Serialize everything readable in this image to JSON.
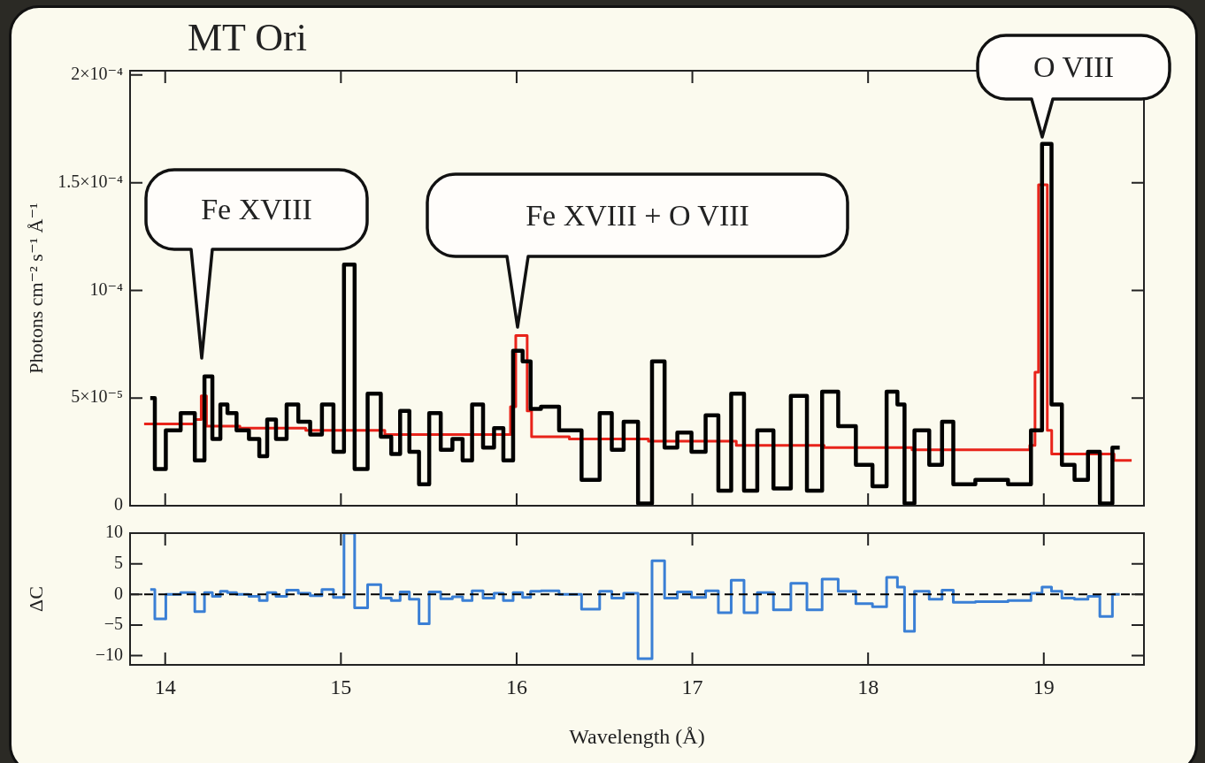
{
  "chart_data": [
    {
      "type": "step",
      "title": "MT Ori",
      "ylabel": "Photons cm⁻² s⁻¹ Å⁻¹",
      "xlim": [
        13.8,
        19.57
      ],
      "xticks": [
        14,
        15,
        16,
        17,
        18,
        19
      ],
      "ylim": [
        0,
        0.000202
      ],
      "yticks": [
        {
          "value": 0,
          "label": "0"
        },
        {
          "value": 5e-05,
          "label": "5×10⁻⁵"
        },
        {
          "value": 0.0001,
          "label": "10⁻⁴"
        },
        {
          "value": 0.00015,
          "label": "1.5×10⁻⁴"
        },
        {
          "value": 0.0002,
          "label": "2×10⁻⁴"
        }
      ],
      "tick_labels": "y",
      "grid": false,
      "annotations": [
        "Fe XVIII",
        "Fe XVIII + O VIII",
        "O VIII"
      ],
      "series": [
        {
          "color": "#000000",
          "x": [
            13.915,
            13.967,
            14.04,
            14.136,
            14.201,
            14.246,
            14.291,
            14.337,
            14.372,
            14.44,
            14.513,
            14.558,
            14.603,
            14.658,
            14.724,
            14.791,
            14.859,
            14.925,
            14.99,
            15.045,
            15.111,
            15.193,
            15.261,
            15.312,
            15.362,
            15.417,
            15.472,
            15.533,
            15.603,
            15.666,
            15.719,
            15.774,
            15.844,
            15.899,
            15.95,
            16.01,
            16.058,
            16.101,
            16.176,
            16.307,
            16.432,
            16.513,
            16.57,
            16.648,
            16.734,
            16.807,
            16.877,
            16.952,
            17.038,
            17.113,
            17.183,
            17.259,
            17.329,
            17.41,
            17.513,
            17.608,
            17.696,
            17.781,
            17.879,
            17.982,
            18.068,
            18.143,
            18.191,
            18.224,
            18.304,
            18.392,
            18.45,
            18.52,
            18.701,
            18.892,
            18.962,
            19.018,
            19.07,
            19.136,
            19.214,
            19.289,
            19.349,
            19.432
          ],
          "values": [
            5e-05,
            1.7e-05,
            3.5e-05,
            4.3e-05,
            2.1e-05,
            6e-05,
            3.1e-05,
            4.7e-05,
            4.3e-05,
            3.5e-05,
            3.1e-05,
            2.3e-05,
            4e-05,
            3.1e-05,
            4.7e-05,
            3.9e-05,
            3.3e-05,
            4.7e-05,
            2.5e-05,
            0.000112,
            1.7e-05,
            5.2e-05,
            3.2e-05,
            2.4e-05,
            4.4e-05,
            2.5e-05,
            1e-05,
            4.3e-05,
            2.6e-05,
            3.1e-05,
            2.1e-05,
            4.7e-05,
            2.7e-05,
            3.6e-05,
            2.1e-05,
            7.2e-05,
            6.7e-05,
            4.5e-05,
            4.6e-05,
            3.5e-05,
            1.2e-05,
            4.3e-05,
            2.6e-05,
            3.9e-05,
            1e-06,
            6.7e-05,
            2.7e-05,
            3.4e-05,
            2.5e-05,
            4.2e-05,
            7e-06,
            5.2e-05,
            7e-06,
            3.5e-05,
            8e-06,
            5.1e-05,
            7e-06,
            5.3e-05,
            3.7e-05,
            1.9e-05,
            9e-06,
            5.3e-05,
            4.7e-05,
            1e-06,
            3.5e-05,
            1.9e-05,
            3.9e-05,
            1e-05,
            1.2e-05,
            1e-05,
            3.5e-05,
            0.000168,
            4.7e-05,
            1.9e-05,
            1.2e-05,
            2.5e-05,
            1e-06,
            2.7e-05
          ]
        },
        {
          "color": "#e8231a",
          "x": [
            13.88,
            14.15,
            14.19,
            14.22,
            14.25,
            14.6,
            15.0,
            15.5,
            15.95,
            15.98,
            16.01,
            16.05,
            16.07,
            16.1,
            16.5,
            17.0,
            17.5,
            18.0,
            18.5,
            18.9,
            18.94,
            18.96,
            18.98,
            19.01,
            19.03,
            19.06,
            19.3,
            19.5
          ],
          "values": [
            3.8e-05,
            3.8e-05,
            4e-05,
            5.1e-05,
            3.7e-05,
            3.6e-05,
            3.5e-05,
            3.3e-05,
            3.3e-05,
            4.6e-05,
            7.9e-05,
            7.9e-05,
            4.4e-05,
            3.2e-05,
            3.1e-05,
            3e-05,
            2.8e-05,
            2.7e-05,
            2.6e-05,
            2.6e-05,
            2.8e-05,
            6.2e-05,
            0.000149,
            0.000149,
            3.5e-05,
            2.4e-05,
            2.4e-05,
            2.1e-05
          ]
        }
      ]
    },
    {
      "type": "step",
      "xlabel": "Wavelength (Å)",
      "ylabel": "ΔC",
      "xlim": [
        13.8,
        19.57
      ],
      "xticks": [
        14,
        15,
        16,
        17,
        18,
        19
      ],
      "ylim": [
        -11.5,
        10
      ],
      "yticks": [
        -10,
        -5,
        0,
        5,
        10
      ],
      "grid": false,
      "ref_lines": [
        {
          "axis": "y",
          "value": 0,
          "color": "#000000",
          "line_style": "dashed"
        }
      ],
      "series": [
        {
          "color": "#3a7fd5",
          "x": [
            13.915,
            13.967,
            14.04,
            14.136,
            14.201,
            14.246,
            14.291,
            14.337,
            14.372,
            14.44,
            14.513,
            14.558,
            14.603,
            14.658,
            14.724,
            14.791,
            14.859,
            14.925,
            14.99,
            15.045,
            15.111,
            15.193,
            15.261,
            15.312,
            15.362,
            15.417,
            15.472,
            15.533,
            15.603,
            15.666,
            15.719,
            15.774,
            15.844,
            15.899,
            15.95,
            16.01,
            16.058,
            16.101,
            16.176,
            16.307,
            16.432,
            16.513,
            16.57,
            16.648,
            16.734,
            16.807,
            16.877,
            16.952,
            17.038,
            17.113,
            17.183,
            17.259,
            17.329,
            17.41,
            17.513,
            17.608,
            17.696,
            17.781,
            17.879,
            17.982,
            18.068,
            18.143,
            18.191,
            18.224,
            18.304,
            18.392,
            18.45,
            18.52,
            18.701,
            18.892,
            18.962,
            19.018,
            19.07,
            19.136,
            19.214,
            19.289,
            19.349,
            19.432
          ],
          "values": [
            0.8,
            -4,
            0,
            0.3,
            -2.8,
            0.3,
            -0.3,
            0.5,
            0.3,
            0,
            -0.3,
            -1,
            0.3,
            -0.3,
            0.7,
            0.2,
            -0.2,
            0.8,
            -0.5,
            10,
            -2.2,
            1.6,
            -0.6,
            -1,
            0.4,
            -0.8,
            -4.8,
            0.4,
            -0.7,
            -0.4,
            -1,
            0.6,
            -0.6,
            0.2,
            -1,
            0.3,
            -0.5,
            0.5,
            0.6,
            0,
            -2.4,
            0.5,
            -0.6,
            0.2,
            -10.5,
            5.5,
            -0.6,
            0.4,
            -0.5,
            0.6,
            -3,
            2.3,
            -3,
            0.3,
            -2.5,
            1.8,
            -2.5,
            2.5,
            0.5,
            -1.5,
            -2,
            2.8,
            1.2,
            -6,
            0.5,
            -0.8,
            0.7,
            -1.3,
            -1.2,
            -1,
            0.2,
            1.2,
            0.5,
            -0.6,
            -0.8,
            -0.3,
            -3.6,
            0
          ]
        }
      ]
    }
  ]
}
